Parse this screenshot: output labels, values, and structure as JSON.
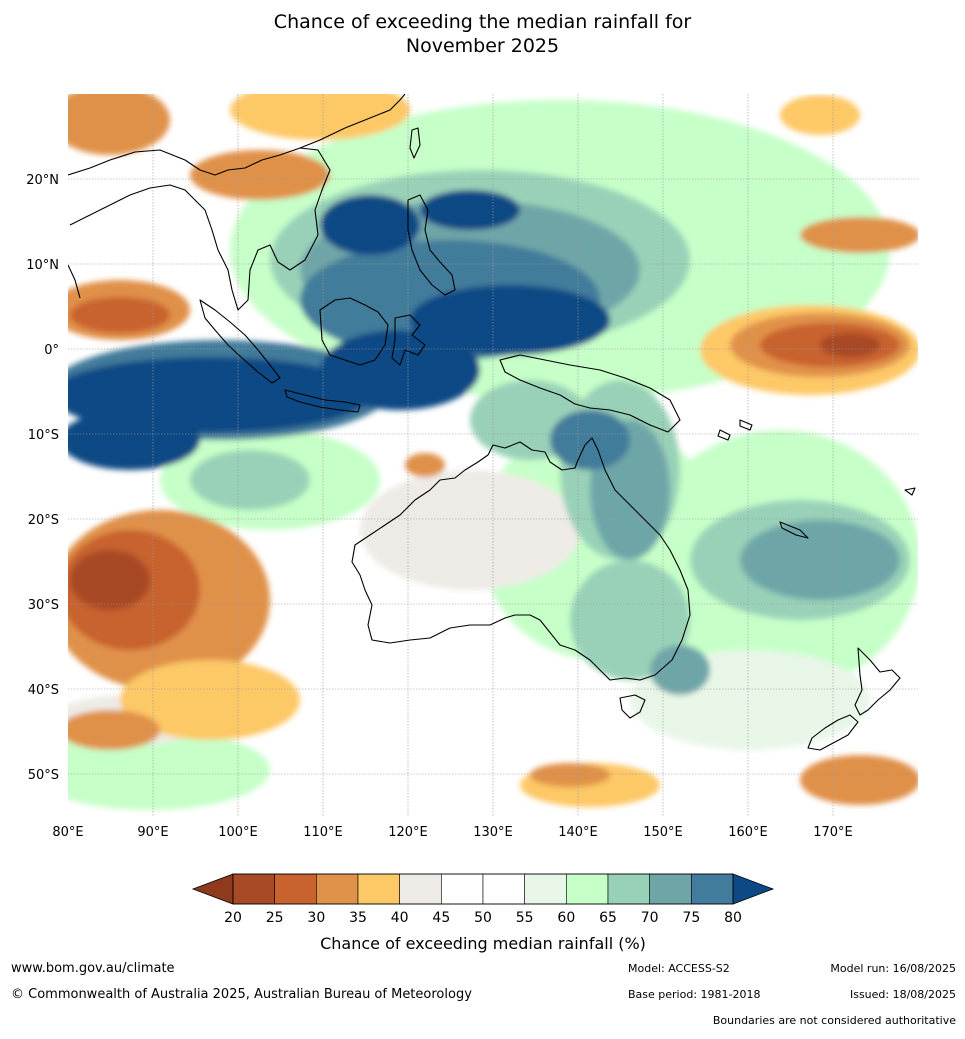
{
  "title": {
    "line1": "Chance of exceeding the median rainfall for",
    "line2": "November 2025"
  },
  "map": {
    "lon_range": [
      80,
      180
    ],
    "lat_range": [
      -55,
      30
    ],
    "lon_ticks": [
      "80°E",
      "90°E",
      "100°E",
      "110°E",
      "120°E",
      "130°E",
      "140°E",
      "150°E",
      "160°E",
      "170°E"
    ],
    "lat_ticks": [
      "20°N",
      "10°N",
      "0°",
      "10°S",
      "20°S",
      "30°S",
      "40°S",
      "50°S"
    ],
    "grid": true
  },
  "colorbar": {
    "labels": [
      "20",
      "25",
      "30",
      "35",
      "40",
      "45",
      "50",
      "55",
      "60",
      "65",
      "70",
      "75",
      "80"
    ],
    "colors": [
      "#a84a26",
      "#c8622e",
      "#e0914a",
      "#fdc866",
      "#eeebe6",
      "#ffffff",
      "#ffffff",
      "#e8f6e8",
      "#c6ffc8",
      "#99d1b8",
      "#6ea6a8",
      "#427b9b",
      "#0d4a85"
    ],
    "under_color": "#8f3a1e",
    "over_color": "#0d4a85",
    "label": "Chance of exceeding median rainfall (%)"
  },
  "footer": {
    "website": "www.bom.gov.au/climate",
    "copyright": "© Commonwealth of Australia 2025, Australian Bureau of Meteorology",
    "model": "Model: ACCESS-S2",
    "base_period": "Base period: 1981-2018",
    "model_run": "Model run: 16/08/2025",
    "issued": "Issued: 18/08/2025",
    "disclaimer": "Boundaries are not considered authoritative"
  }
}
